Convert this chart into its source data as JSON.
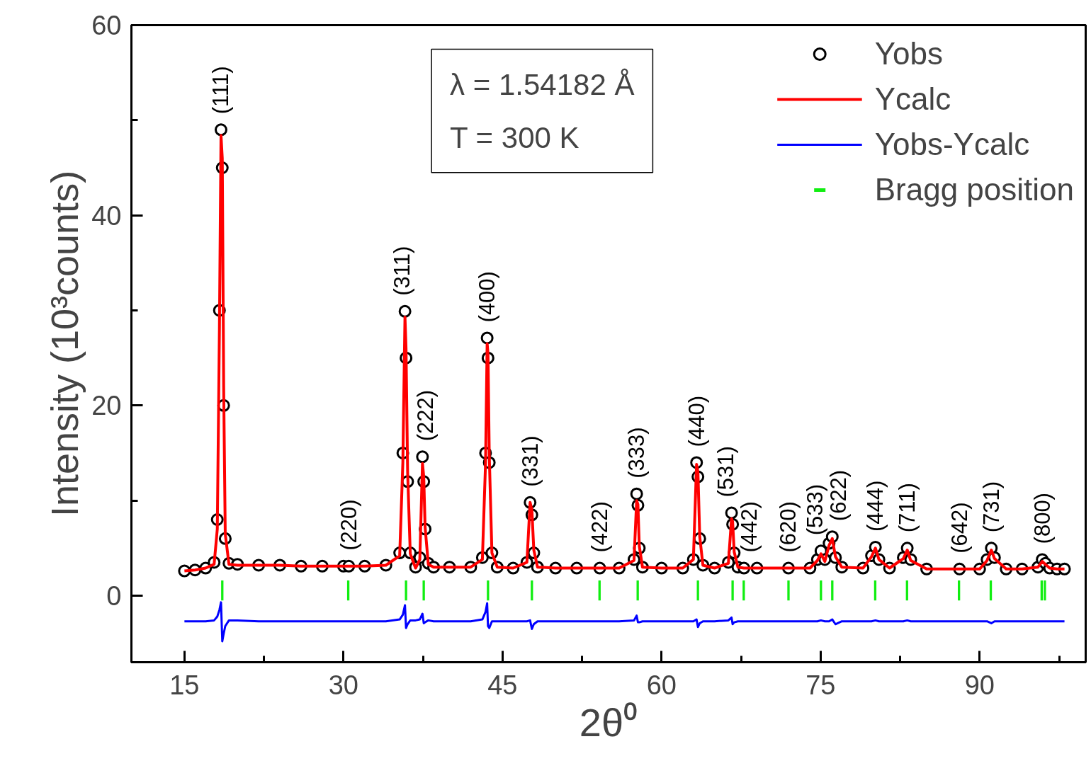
{
  "chart_data": {
    "type": "scatter",
    "xlabel": "2θ⁰",
    "ylabel": "Intensity (10³counts)",
    "xlim": [
      10,
      100
    ],
    "xticks": [
      15,
      30,
      45,
      60,
      75,
      90
    ],
    "ylim": [
      -7,
      60
    ],
    "yticks": [
      0,
      20,
      40,
      60
    ],
    "grid": false,
    "legend": "top right",
    "x": [
      15,
      16,
      17,
      17.8,
      18.1,
      18.3,
      18.45,
      18.57,
      18.7,
      18.85,
      19.2,
      20,
      22,
      24,
      26,
      28,
      30,
      30.5,
      32,
      34,
      35.3,
      35.6,
      35.8,
      35.9,
      36.05,
      36.3,
      36.8,
      37.2,
      37.45,
      37.57,
      37.7,
      38.0,
      38.5,
      40,
      42,
      43.1,
      43.4,
      43.55,
      43.63,
      43.75,
      44.0,
      44.5,
      46,
      47.3,
      47.6,
      47.77,
      47.95,
      48.3,
      50,
      52,
      54.17,
      56,
      57.4,
      57.65,
      57.77,
      57.9,
      58.2,
      60,
      62,
      63.0,
      63.3,
      63.43,
      63.6,
      63.9,
      65,
      66.3,
      66.6,
      66.7,
      66.85,
      67.2,
      67.77,
      69,
      71.97,
      74,
      74.7,
      75.03,
      75.4,
      75.8,
      76.1,
      76.4,
      77,
      79,
      79.8,
      80.17,
      80.5,
      81.5,
      82.8,
      83.17,
      83.5,
      85,
      88.1,
      90,
      90.7,
      91.1,
      91.4,
      92.5,
      94,
      95.5,
      95.9,
      96.2,
      96.6,
      97.3,
      98
    ],
    "series": [
      {
        "name": "Yobs",
        "marker": "circle",
        "color": "#000000",
        "values": [
          2.6,
          2.7,
          2.9,
          3.5,
          8,
          30,
          49,
          45,
          20,
          6,
          3.4,
          3.3,
          3.2,
          3.2,
          3.1,
          3.1,
          3.1,
          3.1,
          3.1,
          3.2,
          4.5,
          15,
          29.9,
          25,
          12,
          4.5,
          3.0,
          4,
          14.6,
          12,
          7,
          3.4,
          3.0,
          3.0,
          3.0,
          4,
          15,
          27.1,
          25,
          14,
          4.5,
          3.0,
          2.9,
          3.5,
          9.8,
          8.5,
          4.5,
          3.0,
          2.9,
          2.9,
          2.9,
          2.9,
          3.8,
          10.7,
          9.5,
          5,
          3.0,
          2.9,
          2.9,
          3.8,
          14.0,
          12.5,
          6,
          3.2,
          2.9,
          3.5,
          8.7,
          7.5,
          4.5,
          3.0,
          2.9,
          2.9,
          2.9,
          2.9,
          3.8,
          4.7,
          3.8,
          5.5,
          6.2,
          4,
          3.0,
          2.9,
          4.2,
          5.1,
          3.8,
          2.9,
          4.0,
          5.0,
          3.8,
          2.8,
          2.8,
          2.8,
          3.8,
          5.0,
          4.0,
          2.8,
          2.8,
          3.0,
          3.8,
          3.4,
          2.9,
          2.8,
          2.8
        ]
      },
      {
        "name": "Ycalc",
        "type": "line",
        "color": "#ff0000",
        "values": [
          2.6,
          2.7,
          2.9,
          3.3,
          7,
          28,
          48.4,
          46,
          22,
          6.5,
          3.3,
          3.2,
          3.2,
          3.2,
          3.1,
          3.1,
          3.1,
          3.1,
          3.1,
          3.2,
          4.2,
          14,
          29.3,
          26,
          13,
          4.4,
          2.9,
          3.8,
          13.9,
          12.5,
          7.2,
          3.3,
          3.0,
          3.0,
          3.0,
          3.8,
          14,
          26.5,
          25.5,
          14.8,
          4.5,
          3.0,
          2.9,
          3.5,
          9.8,
          9.0,
          4.8,
          3.0,
          2.9,
          2.9,
          2.9,
          2.9,
          3.7,
          10.0,
          9.6,
          5.2,
          3.0,
          2.9,
          2.9,
          3.8,
          13.8,
          13.0,
          6.2,
          3.2,
          2.9,
          3.4,
          8.1,
          7.8,
          4.6,
          3.0,
          2.9,
          2.9,
          2.9,
          2.9,
          3.7,
          4.4,
          3.6,
          5.3,
          6.0,
          4.1,
          3.0,
          2.9,
          4.1,
          5.0,
          3.8,
          2.9,
          3.9,
          4.8,
          3.7,
          2.8,
          2.8,
          2.8,
          3.7,
          4.8,
          3.9,
          2.8,
          2.8,
          3.0,
          3.6,
          3.3,
          2.9,
          2.8,
          2.8
        ]
      },
      {
        "name": "Yobs-Ycalc",
        "type": "line",
        "color": "#0000ff",
        "values": [
          -2.7,
          -2.7,
          -2.7,
          -2.6,
          -2.2,
          -1.5,
          -0.7,
          -4.8,
          -4.0,
          -3.2,
          -2.6,
          -2.6,
          -2.7,
          -2.7,
          -2.7,
          -2.7,
          -2.7,
          -2.7,
          -2.7,
          -2.7,
          -2.5,
          -2.0,
          -1.0,
          -3.4,
          -3.0,
          -2.6,
          -2.6,
          -2.5,
          -1.9,
          -2.9,
          -2.8,
          -2.6,
          -2.7,
          -2.7,
          -2.7,
          -2.5,
          -1.7,
          -0.8,
          -3.2,
          -3.4,
          -2.7,
          -2.7,
          -2.7,
          -2.7,
          -2.6,
          -3.5,
          -3.0,
          -2.7,
          -2.7,
          -2.7,
          -2.7,
          -2.7,
          -2.6,
          -2.1,
          -2.8,
          -2.8,
          -2.7,
          -2.7,
          -2.7,
          -2.7,
          -2.5,
          -3.3,
          -2.9,
          -2.7,
          -2.7,
          -2.6,
          -2.3,
          -3.0,
          -2.8,
          -2.7,
          -2.7,
          -2.7,
          -2.7,
          -2.7,
          -2.7,
          -2.6,
          -2.7,
          -2.7,
          -2.5,
          -3.0,
          -2.7,
          -2.7,
          -2.7,
          -2.6,
          -2.7,
          -2.7,
          -2.7,
          -2.6,
          -2.7,
          -2.7,
          -2.7,
          -2.7,
          -2.7,
          -2.9,
          -2.7,
          -2.7,
          -2.7,
          -2.7,
          -2.7,
          -2.7,
          -2.7,
          -2.7,
          -2.7
        ]
      },
      {
        "name": "Bragg position",
        "type": "bar",
        "color": "#11ee11",
        "x": [
          18.57,
          30.45,
          35.9,
          37.57,
          43.63,
          47.77,
          54.15,
          57.75,
          63.43,
          66.7,
          67.75,
          71.97,
          75.03,
          76.1,
          80.15,
          83.15,
          88.05,
          91.05,
          95.85,
          96.15
        ],
        "base": [
          -0.5,
          -0.5,
          -0.5,
          -0.5,
          -0.5,
          -0.5,
          -0.5,
          -0.5,
          -0.5,
          -0.5,
          -0.5,
          -0.5,
          -0.5,
          -0.5,
          -0.5,
          -0.5,
          -0.5,
          -0.5,
          -0.5,
          -0.5
        ],
        "values": [
          2.1,
          2.1,
          2.1,
          2.1,
          2.1,
          2.1,
          2.1,
          2.1,
          2.1,
          2.1,
          2.1,
          2.1,
          2.1,
          2.1,
          2.1,
          2.1,
          2.1,
          2.1,
          2.1,
          2.1
        ]
      }
    ],
    "annotations": [
      {
        "text": "(111)",
        "x": 18.45,
        "y": 49
      },
      {
        "text": "(220)",
        "x": 30.5,
        "y": 3.1
      },
      {
        "text": "(311)",
        "x": 35.8,
        "y": 29.9
      },
      {
        "text": "(222)",
        "x": 37.45,
        "y": 14.6
      },
      {
        "text": "(400)",
        "x": 43.55,
        "y": 27.1
      },
      {
        "text": "(331)",
        "x": 47.6,
        "y": 9.8
      },
      {
        "text": "(422)",
        "x": 54.17,
        "y": 2.9
      },
      {
        "text": "(333)",
        "x": 57.65,
        "y": 10.7
      },
      {
        "text": "(440)",
        "x": 63.3,
        "y": 14.0
      },
      {
        "text": "(531)",
        "x": 66.6,
        "y": 8.7
      },
      {
        "text": "(442)",
        "x": 67.77,
        "y": 2.9
      },
      {
        "text": "(620)",
        "x": 71.97,
        "y": 2.9
      },
      {
        "text": "(533)",
        "x": 75.03,
        "y": 4.7
      },
      {
        "text": "(622)",
        "x": 76.1,
        "y": 6.2
      },
      {
        "text": "(444)",
        "x": 80.17,
        "y": 5.1
      },
      {
        "text": "(711)",
        "x": 83.17,
        "y": 5.0
      },
      {
        "text": "(642)",
        "x": 88.1,
        "y": 2.8
      },
      {
        "text": "(731)",
        "x": 91.1,
        "y": 5.0
      },
      {
        "text": "(800)",
        "x": 95.9,
        "y": 3.8
      },
      "λ = 1.54182 Å",
      "T = 300 K"
    ]
  }
}
